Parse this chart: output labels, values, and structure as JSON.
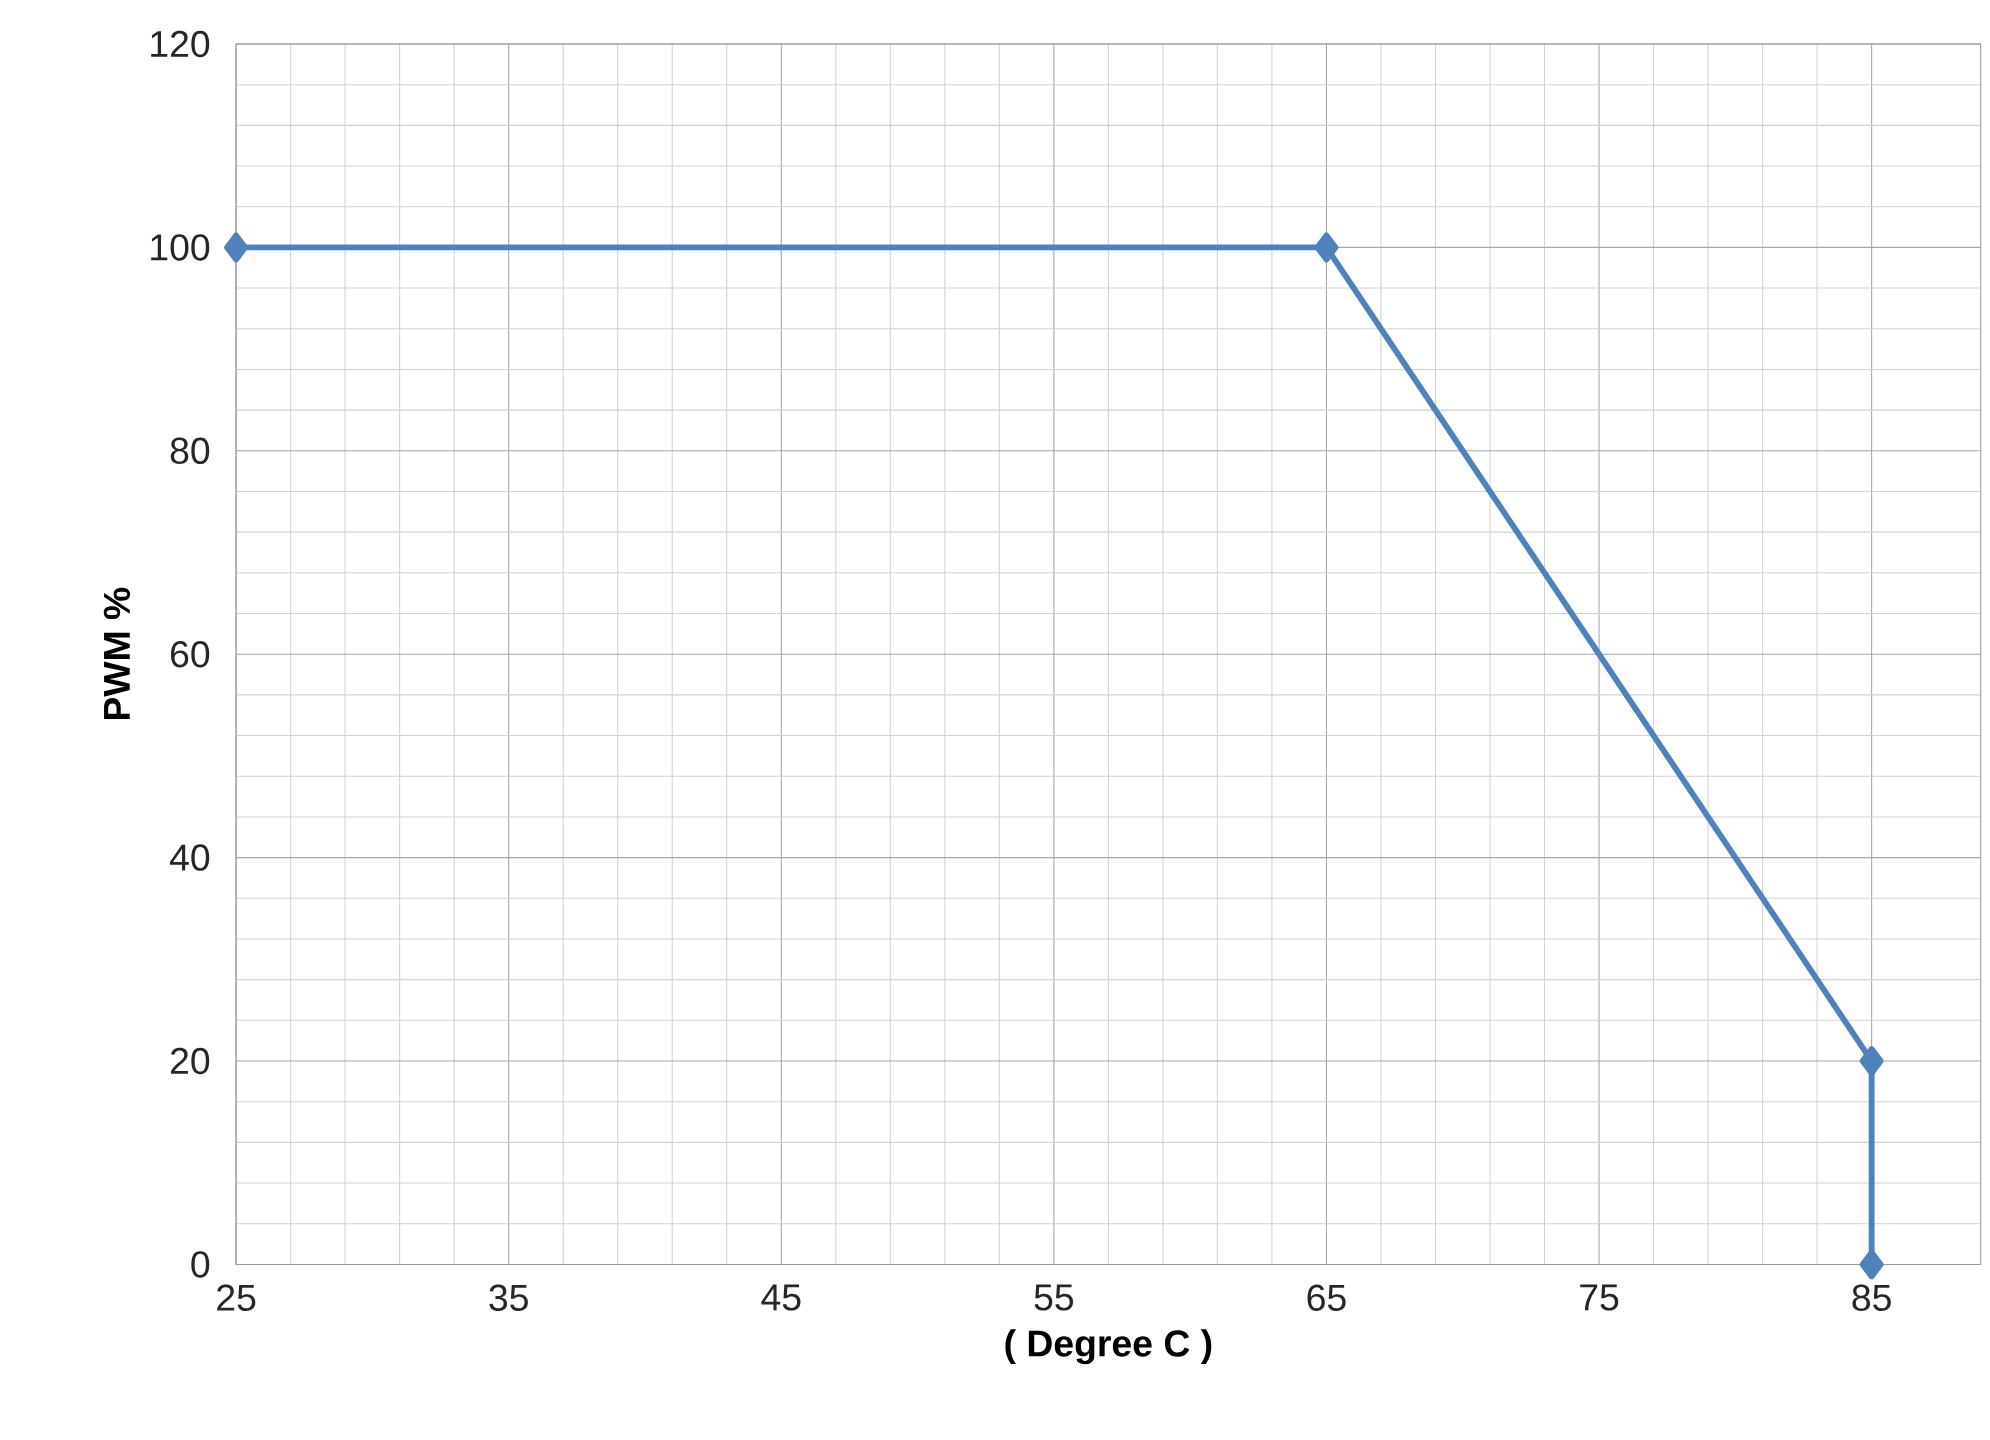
{
  "chart_data": {
    "type": "line",
    "xlabel": "( Degree C )",
    "ylabel": "PWM %",
    "x": [
      25,
      65,
      85,
      85
    ],
    "series": [
      {
        "color": "#4f81bd",
        "values": [
          100,
          100,
          20,
          0
        ]
      }
    ],
    "xlim": [
      25,
      89
    ],
    "xticks": [
      25,
      35,
      45,
      55,
      65,
      75,
      85
    ],
    "ylim": [
      0,
      120
    ],
    "yticks": [
      0,
      20,
      40,
      60,
      80,
      100,
      120
    ],
    "grid": true,
    "marker": "diamond",
    "line_style": "solid"
  }
}
